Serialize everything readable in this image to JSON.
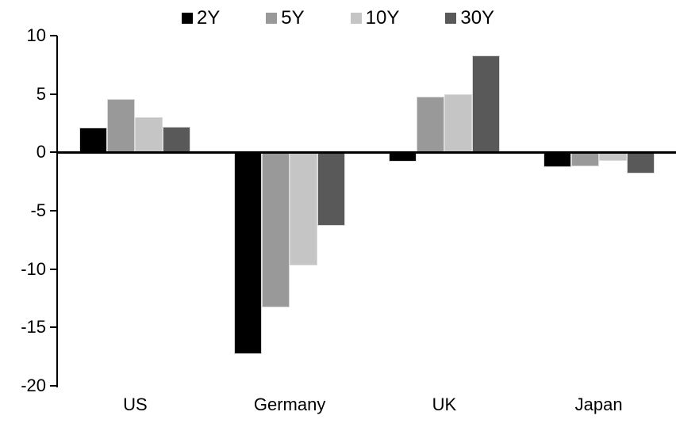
{
  "chart_data": {
    "type": "bar",
    "title": "",
    "xlabel": "",
    "ylabel": "",
    "categories": [
      "US",
      "Germany",
      "UK",
      "Japan"
    ],
    "series": [
      {
        "name": "2Y",
        "color": "#000000",
        "values": [
          2.1,
          -17.3,
          -0.8,
          -1.3
        ]
      },
      {
        "name": "5Y",
        "color": "#999999",
        "values": [
          4.6,
          -13.3,
          4.8,
          -1.2
        ]
      },
      {
        "name": "10Y",
        "color": "#c5c5c5",
        "values": [
          3.0,
          -9.7,
          5.0,
          -0.7
        ]
      },
      {
        "name": "30Y",
        "color": "#595959",
        "values": [
          2.2,
          -6.3,
          8.3,
          -1.8
        ]
      }
    ],
    "ylim": [
      -20,
      10
    ],
    "yticks": [
      10,
      5,
      0,
      -5,
      -10,
      -15,
      -20
    ],
    "ytick_labels": [
      "10",
      "5",
      "0",
      "-5",
      "-10",
      "-15",
      "-20"
    ],
    "grid": false,
    "legend_position": "top-center"
  },
  "colors": {
    "background": "#ffffff",
    "axis": "#000000",
    "text": "#000000",
    "bar_border": "#d9d9d9"
  }
}
